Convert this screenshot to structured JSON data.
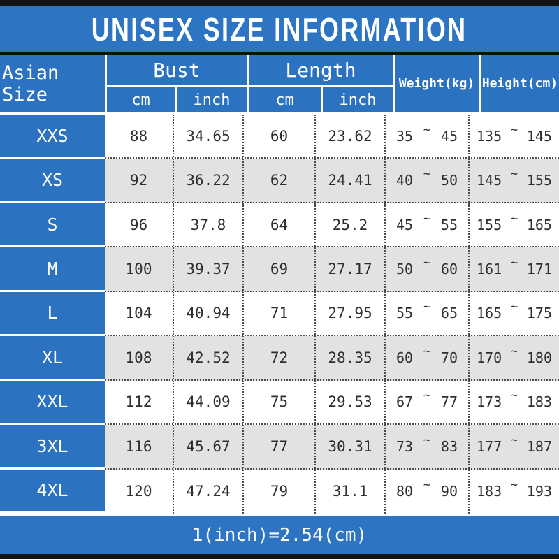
{
  "title": "UNISEX SIZE INFORMATION",
  "footer_note": "1(inch)=2.54(cm)",
  "colors": {
    "banner_blue": "#2d74c3",
    "cell_blue": "#2b72c1",
    "row_alt_gray": "#e3e1e2",
    "border_black": "#141414",
    "text_dark": "#2e2e2e"
  },
  "table": {
    "corner_header": "Asian Size",
    "tilde": "~",
    "groups": [
      {
        "label": "Bust",
        "sub": [
          "cm",
          "inch"
        ]
      },
      {
        "label": "Length",
        "sub": [
          "cm",
          "inch"
        ]
      }
    ],
    "range_headers": [
      "Weight(kg)",
      "Height(cm)"
    ],
    "rows": [
      {
        "size": "XXS",
        "bust_cm": "88",
        "bust_inch": "34.65",
        "length_cm": "60",
        "length_inch": "23.62",
        "weight_min": "35",
        "weight_max": "45",
        "height_min": "135",
        "height_max": "145"
      },
      {
        "size": "XS",
        "bust_cm": "92",
        "bust_inch": "36.22",
        "length_cm": "62",
        "length_inch": "24.41",
        "weight_min": "40",
        "weight_max": "50",
        "height_min": "145",
        "height_max": "155"
      },
      {
        "size": "S",
        "bust_cm": "96",
        "bust_inch": "37.8",
        "length_cm": "64",
        "length_inch": "25.2",
        "weight_min": "45",
        "weight_max": "55",
        "height_min": "155",
        "height_max": "165"
      },
      {
        "size": "M",
        "bust_cm": "100",
        "bust_inch": "39.37",
        "length_cm": "69",
        "length_inch": "27.17",
        "weight_min": "50",
        "weight_max": "60",
        "height_min": "161",
        "height_max": "171"
      },
      {
        "size": "L",
        "bust_cm": "104",
        "bust_inch": "40.94",
        "length_cm": "71",
        "length_inch": "27.95",
        "weight_min": "55",
        "weight_max": "65",
        "height_min": "165",
        "height_max": "175"
      },
      {
        "size": "XL",
        "bust_cm": "108",
        "bust_inch": "42.52",
        "length_cm": "72",
        "length_inch": "28.35",
        "weight_min": "60",
        "weight_max": "70",
        "height_min": "170",
        "height_max": "180"
      },
      {
        "size": "XXL",
        "bust_cm": "112",
        "bust_inch": "44.09",
        "length_cm": "75",
        "length_inch": "29.53",
        "weight_min": "67",
        "weight_max": "77",
        "height_min": "173",
        "height_max": "183"
      },
      {
        "size": "3XL",
        "bust_cm": "116",
        "bust_inch": "45.67",
        "length_cm": "77",
        "length_inch": "30.31",
        "weight_min": "73",
        "weight_max": "83",
        "height_min": "177",
        "height_max": "187"
      },
      {
        "size": "4XL",
        "bust_cm": "120",
        "bust_inch": "47.24",
        "length_cm": "79",
        "length_inch": "31.1",
        "weight_min": "80",
        "weight_max": "90",
        "height_min": "183",
        "height_max": "193"
      }
    ]
  },
  "chart_data": {
    "type": "table",
    "title": "UNISEX SIZE INFORMATION",
    "columns": [
      "Asian Size",
      "Bust cm",
      "Bust inch",
      "Length cm",
      "Length inch",
      "Weight(kg)",
      "Height(cm)"
    ],
    "rows": [
      [
        "XXS",
        88,
        34.65,
        60,
        23.62,
        "35~45",
        "135~145"
      ],
      [
        "XS",
        92,
        36.22,
        62,
        24.41,
        "40~50",
        "145~155"
      ],
      [
        "S",
        96,
        37.8,
        64,
        25.2,
        "45~55",
        "155~165"
      ],
      [
        "M",
        100,
        39.37,
        69,
        27.17,
        "50~60",
        "161~171"
      ],
      [
        "L",
        104,
        40.94,
        71,
        27.95,
        "55~65",
        "165~175"
      ],
      [
        "XL",
        108,
        42.52,
        72,
        28.35,
        "60~70",
        "170~180"
      ],
      [
        "XXL",
        112,
        44.09,
        75,
        29.53,
        "67~77",
        "173~183"
      ],
      [
        "3XL",
        116,
        45.67,
        77,
        30.31,
        "73~83",
        "177~187"
      ],
      [
        "4XL",
        120,
        47.24,
        79,
        31.1,
        "80~90",
        "183~193"
      ]
    ],
    "footnote": "1(inch)=2.54(cm)"
  }
}
